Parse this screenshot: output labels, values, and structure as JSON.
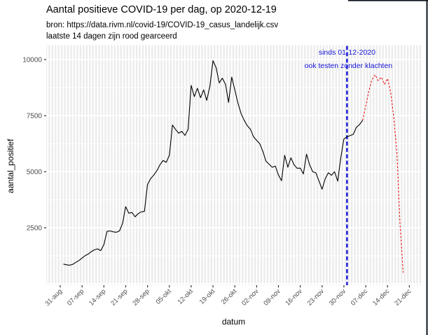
{
  "figure": {
    "title": "Aantal positieve COVID-19 per dag, op 2020-12-19",
    "subtitle_line1": "bron: https://data.rivm.nl/covid-19/COVID-19_casus_landelijk.csv",
    "subtitle_line2": "laatste 14 dagen zijn rood gearceerd"
  },
  "chart_data": {
    "type": "line",
    "title": "Aantal positieve COVID-19 per dag, op 2020-12-19",
    "xlabel": "datum",
    "ylabel": "aantal_positief",
    "x_start_date": "2020-08-31",
    "x_tick_labels": [
      "31-aug",
      "07-sep",
      "14-sep",
      "21-sep",
      "28-sep",
      "05-okt",
      "12-okt",
      "19-okt",
      "26-okt",
      "02-nov",
      "09-nov",
      "16-nov",
      "23-nov",
      "30-nov",
      "07-dec",
      "14-dec",
      "21-dec"
    ],
    "x_tick_days": [
      0,
      7,
      14,
      21,
      28,
      35,
      42,
      49,
      56,
      63,
      70,
      77,
      84,
      91,
      98,
      105,
      112
    ],
    "y_tick_labels": [
      "2500",
      "5000",
      "7500",
      "10000"
    ],
    "y_tick_values": [
      2500,
      5000,
      7500,
      10000
    ],
    "ylim": [
      0,
      10650
    ],
    "grid": {
      "panel_bg": "#ebebeb",
      "gridline_color": "#ffffff",
      "minor_y": [
        1250,
        3750,
        6250,
        8750
      ],
      "major_y": [
        0,
        2500,
        5000,
        7500,
        10000
      ]
    },
    "annotation": {
      "line1": "sinds 01-12-2020",
      "line2": "ook testen zonder klachten",
      "vline_date": "2020-12-01",
      "vline_day": 92,
      "color": "#1515d8",
      "vline_color": "#1515d8"
    },
    "series": [
      {
        "name": "aantal_positief",
        "color": "#000000",
        "style": "solid",
        "start_date": "2020-09-01",
        "start_day": 1,
        "values": [
          880,
          850,
          830,
          870,
          960,
          1040,
          1150,
          1260,
          1330,
          1440,
          1520,
          1560,
          1480,
          1750,
          2340,
          2360,
          2320,
          2300,
          2360,
          2700,
          3440,
          3150,
          3180,
          2990,
          3130,
          3210,
          3230,
          4430,
          4690,
          4850,
          5050,
          5310,
          5500,
          5420,
          5730,
          7080,
          6880,
          6720,
          6800,
          6620,
          6880,
          8850,
          8350,
          8720,
          8300,
          8650,
          8180,
          8800,
          9950,
          9640,
          8960,
          9170,
          8900,
          8090,
          9220,
          8650,
          8070,
          7600,
          7290,
          7050,
          6900,
          6560,
          6400,
          6250,
          5900,
          5470,
          5330,
          5200,
          5250,
          4850,
          4600,
          5730,
          5200,
          5620,
          5310,
          5150,
          5160,
          4900,
          5780,
          5310,
          5000,
          4950,
          4580,
          4220,
          4690,
          4950,
          4840,
          5000,
          4580,
          5620,
          6460,
          6560,
          6610,
          6670,
          6980,
          7100,
          7290
        ]
      },
      {
        "name": "laatste 14 dagen (rood)",
        "color": "#e81010",
        "style": "dashed",
        "start_date": "2020-12-06",
        "start_day": 97,
        "values": [
          7290,
          7920,
          8590,
          9100,
          9320,
          9060,
          9220,
          8900,
          9150,
          8540,
          7400,
          5830,
          2710,
          500
        ]
      }
    ]
  },
  "window": {
    "border_color": "#0d1520"
  }
}
